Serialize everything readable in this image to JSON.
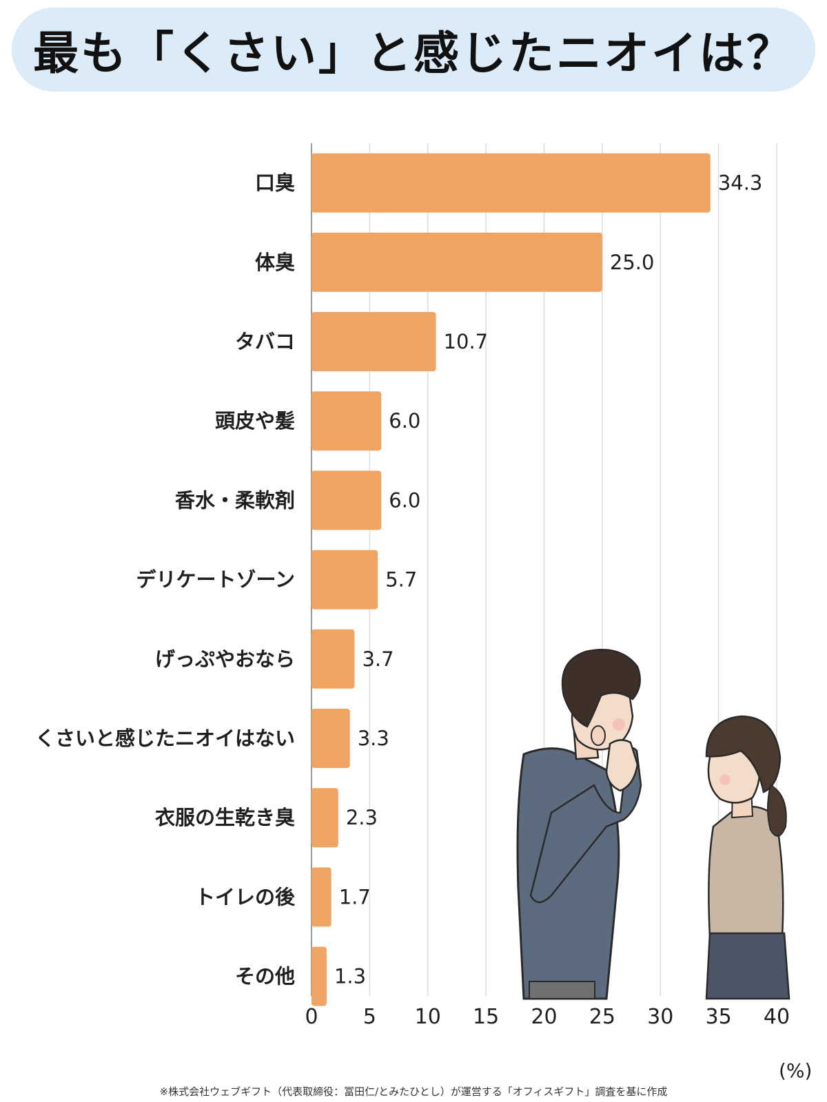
{
  "title": "最も「くさい」と感じたニオイは？",
  "unit": "(%)",
  "footnote": "※株式会社ウェブギフト（代表取締役：冨田仁/とみたひとし）が運営する「オフィスギフト」調査を基に作成",
  "chart_data": {
    "type": "bar",
    "orientation": "horizontal",
    "title": "最も「くさい」と感じたニオイは？",
    "categories": [
      "口臭",
      "体臭",
      "タバコ",
      "頭皮や髪",
      "香水・柔軟剤",
      "デリケートゾーン",
      "げっぷやおなら",
      "くさいと感じたニオイはない",
      "衣服の生乾き臭",
      "トイレの後",
      "その他"
    ],
    "values": [
      34.3,
      25.0,
      10.7,
      6.0,
      6.0,
      5.7,
      3.7,
      3.3,
      2.3,
      1.7,
      1.3
    ],
    "value_labels": [
      "34.3",
      "25.0",
      "10.7",
      "6.0",
      "6.0",
      "5.7",
      "3.7",
      "3.3",
      "2.3",
      "1.7",
      "1.3"
    ],
    "xlim": [
      0,
      40
    ],
    "xticks": [
      0,
      5,
      10,
      15,
      20,
      25,
      30,
      35,
      40
    ],
    "xlabel": "(%)",
    "grid": true,
    "bar_color": "#f0a463"
  }
}
